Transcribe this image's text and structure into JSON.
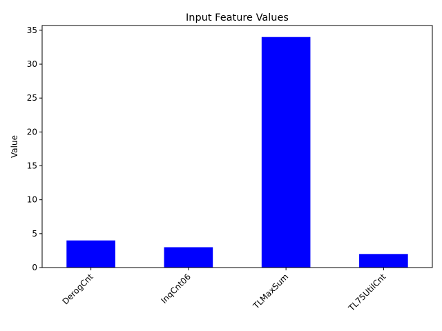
{
  "chart_data": {
    "type": "bar",
    "title": "Input Feature Values",
    "xlabel": "",
    "ylabel": "Value",
    "categories": [
      "DerogCnt",
      "InqCnt06",
      "TLMaxSum",
      "TL75UtilCnt"
    ],
    "values": [
      4,
      3,
      34,
      2
    ],
    "ylim": [
      0,
      35.7
    ],
    "yticks": [
      0,
      5,
      10,
      15,
      20,
      25,
      30,
      35
    ],
    "grid": false,
    "legend": "none",
    "bar_color": "#0000ff",
    "x_tick_rotation": 45
  }
}
